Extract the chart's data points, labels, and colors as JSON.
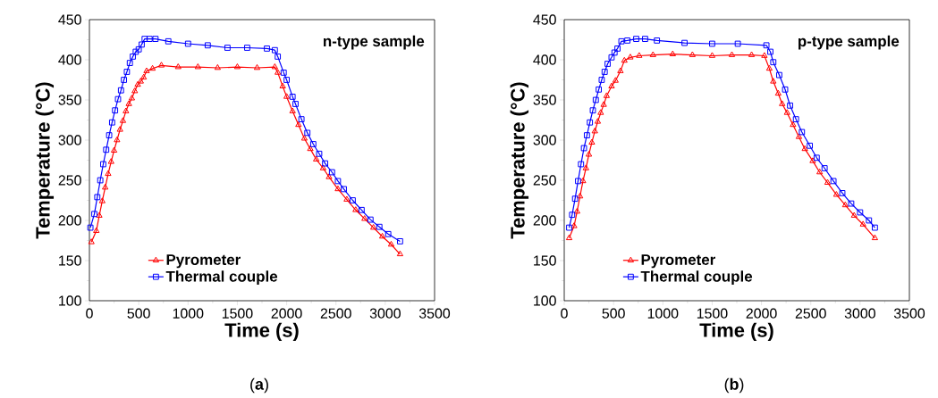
{
  "chart_data": [
    {
      "type": "line",
      "title": "n-type sample",
      "xlabel": "Time (s)",
      "ylabel": "Temperature (°C)",
      "annotations": [
        "(**a**)"
      ],
      "legend": "bottom",
      "xlim": [
        0,
        3500
      ],
      "ylim": [
        100,
        450
      ],
      "xticks": [
        0,
        500,
        1000,
        1500,
        2000,
        2500,
        3000,
        3500
      ],
      "yticks": [
        100,
        150,
        200,
        250,
        300,
        350,
        400,
        450
      ],
      "series": [
        {
          "name": "Pyrometer",
          "color": "#ff0000",
          "marker": "triangle",
          "x": [
            20,
            70,
            100,
            130,
            160,
            190,
            220,
            250,
            280,
            310,
            340,
            370,
            400,
            430,
            460,
            490,
            520,
            550,
            580,
            640,
            730,
            900,
            1100,
            1300,
            1500,
            1700,
            1880,
            1910,
            1960,
            2000,
            2060,
            2120,
            2180,
            2240,
            2300,
            2370,
            2430,
            2520,
            2610,
            2700,
            2790,
            2880,
            2970,
            3060,
            3150
          ],
          "values": [
            173,
            187,
            206,
            224,
            241,
            258,
            273,
            287,
            300,
            313,
            324,
            336,
            345,
            352,
            361,
            369,
            373,
            378,
            386,
            389,
            393,
            391,
            391,
            390,
            391,
            390,
            391,
            384,
            367,
            354,
            336,
            319,
            302,
            289,
            276,
            265,
            254,
            239,
            226,
            213,
            202,
            191,
            180,
            170,
            158
          ]
        },
        {
          "name": "Thermal couple",
          "color": "#0000ff",
          "marker": "square",
          "x": [
            10,
            50,
            80,
            110,
            140,
            170,
            200,
            230,
            260,
            290,
            320,
            350,
            380,
            410,
            440,
            470,
            500,
            530,
            560,
            610,
            670,
            800,
            1000,
            1200,
            1400,
            1600,
            1800,
            1880,
            1910,
            1970,
            2000,
            2060,
            2090,
            2150,
            2210,
            2270,
            2330,
            2390,
            2460,
            2520,
            2580,
            2670,
            2760,
            2850,
            2940,
            3030,
            3150
          ],
          "values": [
            191,
            208,
            229,
            250,
            270,
            288,
            306,
            322,
            337,
            351,
            362,
            375,
            385,
            396,
            404,
            410,
            413,
            419,
            426,
            426,
            426,
            423,
            420,
            418,
            415,
            415,
            414,
            412,
            404,
            384,
            375,
            354,
            345,
            326,
            309,
            295,
            283,
            271,
            260,
            249,
            239,
            225,
            213,
            201,
            192,
            183,
            174
          ]
        }
      ]
    },
    {
      "type": "line",
      "title": "p-type sample",
      "xlabel": "Time (s)",
      "ylabel": "Temperature (°C)",
      "annotations": [
        "(**b**)"
      ],
      "legend": "bottom",
      "xlim": [
        0,
        3500
      ],
      "ylim": [
        100,
        450
      ],
      "xticks": [
        0,
        500,
        1000,
        1500,
        2000,
        2500,
        3000,
        3500
      ],
      "yticks": [
        100,
        150,
        200,
        250,
        300,
        350,
        400,
        450
      ],
      "series": [
        {
          "name": "Pyrometer",
          "color": "#ff0000",
          "marker": "triangle",
          "x": [
            50,
            100,
            130,
            160,
            190,
            220,
            250,
            280,
            310,
            340,
            370,
            400,
            430,
            480,
            520,
            570,
            610,
            670,
            760,
            900,
            1100,
            1300,
            1500,
            1700,
            1900,
            2030,
            2080,
            2120,
            2170,
            2210,
            2260,
            2320,
            2380,
            2440,
            2520,
            2590,
            2670,
            2760,
            2850,
            2940,
            3030,
            3150
          ],
          "values": [
            178,
            193,
            211,
            230,
            249,
            265,
            282,
            297,
            311,
            323,
            334,
            344,
            355,
            367,
            374,
            386,
            399,
            403,
            405,
            406,
            407,
            406,
            405,
            406,
            406,
            405,
            389,
            373,
            358,
            345,
            334,
            319,
            304,
            289,
            274,
            260,
            247,
            232,
            219,
            206,
            195,
            178
          ]
        },
        {
          "name": "Thermal couple",
          "color": "#0000ff",
          "marker": "square",
          "x": [
            50,
            80,
            110,
            140,
            170,
            200,
            230,
            260,
            290,
            320,
            350,
            380,
            410,
            440,
            480,
            510,
            540,
            580,
            640,
            730,
            820,
            940,
            1220,
            1500,
            1760,
            2050,
            2090,
            2120,
            2180,
            2240,
            2290,
            2350,
            2410,
            2490,
            2560,
            2640,
            2730,
            2820,
            2910,
            3000,
            3090,
            3150
          ],
          "values": [
            191,
            207,
            227,
            249,
            270,
            290,
            306,
            322,
            337,
            350,
            363,
            375,
            385,
            395,
            403,
            409,
            414,
            423,
            424,
            426,
            426,
            424,
            421,
            420,
            420,
            418,
            410,
            397,
            381,
            363,
            343,
            326,
            310,
            293,
            278,
            265,
            249,
            234,
            221,
            210,
            200,
            191
          ]
        }
      ]
    }
  ]
}
